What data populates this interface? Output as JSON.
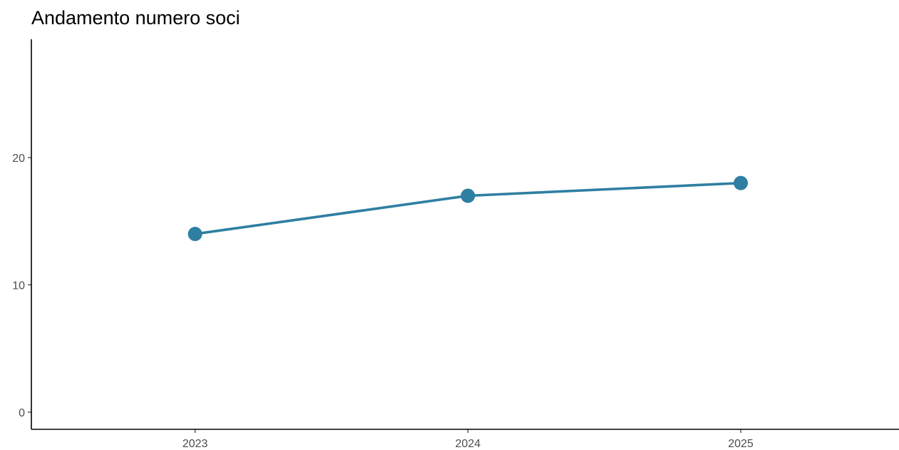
{
  "chart_data": {
    "type": "line",
    "title": "Andamento numero soci",
    "xlabel": "",
    "ylabel": "",
    "x": [
      2023,
      2024,
      2025
    ],
    "x_tick_labels": [
      "2023",
      "2024",
      "2025"
    ],
    "series": [
      {
        "values": [
          14,
          17,
          18
        ]
      }
    ],
    "y_ticks": [
      0,
      10,
      20
    ],
    "y_tick_labels": [
      "0",
      "10",
      "20"
    ],
    "xlim": [
      2022.4,
      2025.58
    ],
    "ylim": [
      -1.35,
      29.3
    ],
    "grid": false,
    "legend": "none",
    "colors": {
      "series": "#2e7fa1",
      "axis": "#000000",
      "tick_text": "#4d4d4d"
    }
  }
}
